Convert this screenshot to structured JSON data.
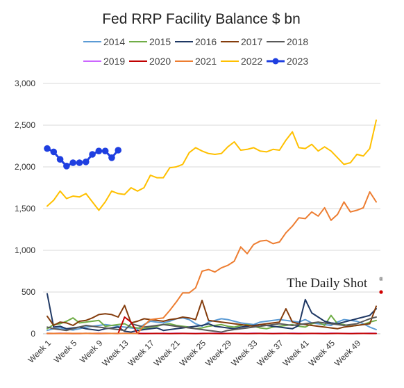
{
  "chart_data": {
    "type": "line",
    "title": "Fed RRP Facility Balance $ bn",
    "xlabel": "",
    "ylabel": "",
    "ylim": [
      0,
      3000
    ],
    "y_ticks": [
      "0",
      "500",
      "1,000",
      "1,500",
      "2,000",
      "2,500",
      "3,000"
    ],
    "x_tick_labels": [
      "Week 1",
      "Week 5",
      "Week 9",
      "Week 13",
      "Week 17",
      "Week 21",
      "Week 25",
      "Week 29",
      "Week 33",
      "Week 37",
      "Week 41",
      "Week 45",
      "Week 49"
    ],
    "x_tick_weeks": [
      1,
      5,
      9,
      13,
      17,
      21,
      25,
      29,
      33,
      37,
      41,
      45,
      49
    ],
    "weeks": 52,
    "grid": "horizontal",
    "legend_position": "top",
    "series": [
      {
        "name": "2014",
        "color": "#5b9bd5",
        "markers": false,
        "values": [
          40,
          60,
          70,
          55,
          45,
          60,
          80,
          90,
          100,
          110,
          100,
          90,
          80,
          70,
          60,
          110,
          150,
          140,
          130,
          150,
          180,
          190,
          170,
          120,
          90,
          140,
          160,
          180,
          170,
          150,
          130,
          120,
          110,
          140,
          150,
          160,
          170,
          160,
          150,
          140,
          170,
          130,
          120,
          110,
          100,
          140,
          170,
          160,
          150,
          120,
          80,
          50
        ]
      },
      {
        "name": "2015",
        "color": "#70ad47",
        "markers": false,
        "values": [
          60,
          110,
          120,
          150,
          190,
          130,
          140,
          150,
          160,
          90,
          100,
          110,
          120,
          80,
          70,
          60,
          80,
          90,
          110,
          120,
          100,
          90,
          80,
          60,
          70,
          90,
          100,
          110,
          90,
          80,
          100,
          110,
          90,
          70,
          60,
          80,
          90,
          100,
          110,
          90,
          80,
          120,
          140,
          100,
          220,
          120,
          110,
          90,
          100,
          110,
          140,
          160
        ]
      },
      {
        "name": "2016",
        "color": "#1f3864",
        "markers": false,
        "values": [
          480,
          80,
          90,
          60,
          70,
          80,
          60,
          50,
          40,
          60,
          70,
          80,
          30,
          20,
          40,
          50,
          60,
          70,
          40,
          50,
          60,
          70,
          80,
          90,
          100,
          120,
          90,
          80,
          70,
          60,
          80,
          90,
          100,
          110,
          100,
          90,
          80,
          70,
          60,
          100,
          410,
          250,
          200,
          150,
          130,
          120,
          140,
          160,
          180,
          200,
          220,
          300
        ]
      },
      {
        "name": "2017",
        "color": "#843c0c",
        "markers": false,
        "values": [
          210,
          100,
          140,
          130,
          100,
          150,
          160,
          190,
          230,
          240,
          230,
          200,
          340,
          130,
          150,
          180,
          170,
          160,
          150,
          170,
          180,
          200,
          190,
          170,
          400,
          160,
          150,
          140,
          130,
          120,
          110,
          100,
          90,
          110,
          120,
          130,
          140,
          300,
          140,
          120,
          110,
          100,
          90,
          80,
          70,
          60,
          80,
          90,
          100,
          110,
          120,
          330
        ]
      },
      {
        "name": "2018",
        "color": "#595959",
        "markers": false,
        "values": [
          80,
          60,
          50,
          40,
          60,
          80,
          100,
          90,
          80,
          70,
          60,
          50,
          40,
          120,
          100,
          80,
          90,
          100,
          110,
          100,
          90,
          80,
          70,
          60,
          50,
          40,
          30,
          20,
          40,
          50,
          60,
          70,
          80,
          90,
          100,
          110,
          120,
          110,
          100,
          110,
          120,
          130,
          140,
          130,
          120,
          110,
          100,
          110,
          120,
          150,
          180,
          200
        ]
      },
      {
        "name": "2019",
        "color": "#cc66ff",
        "markers": false,
        "values": [
          5,
          4,
          6,
          5,
          4,
          3,
          5,
          4,
          6,
          5,
          4,
          3,
          5,
          4,
          6,
          5,
          4,
          3,
          5,
          4,
          6,
          5,
          4,
          3,
          5,
          4,
          6,
          5,
          4,
          3,
          5,
          4,
          6,
          5,
          4,
          3,
          5,
          4,
          6,
          5,
          4,
          3,
          5,
          4,
          6,
          5,
          4,
          3,
          5,
          4,
          6,
          5
        ]
      },
      {
        "name": "2020",
        "color": "#c00000",
        "markers": false,
        "values": [
          3,
          3,
          4,
          3,
          2,
          3,
          4,
          3,
          2,
          3,
          4,
          3,
          200,
          140,
          3,
          2,
          3,
          4,
          3,
          2,
          3,
          4,
          3,
          2,
          3,
          4,
          3,
          2,
          3,
          4,
          3,
          2,
          3,
          4,
          3,
          2,
          3,
          4,
          3,
          2,
          3,
          4,
          3,
          2,
          3,
          4,
          3,
          2,
          3,
          4,
          3,
          3
        ]
      },
      {
        "name": "2021",
        "color": "#ed7d31",
        "markers": false,
        "values": [
          5,
          4,
          3,
          5,
          4,
          3,
          5,
          4,
          3,
          5,
          4,
          3,
          5,
          4,
          3,
          100,
          170,
          180,
          190,
          280,
          380,
          490,
          490,
          550,
          750,
          770,
          740,
          790,
          820,
          870,
          1040,
          960,
          1070,
          1110,
          1120,
          1080,
          1100,
          1210,
          1290,
          1390,
          1380,
          1460,
          1410,
          1510,
          1360,
          1430,
          1580,
          1460,
          1480,
          1510,
          1700,
          1580
        ]
      },
      {
        "name": "2022",
        "color": "#ffc000",
        "markers": false,
        "values": [
          1530,
          1600,
          1710,
          1620,
          1650,
          1640,
          1680,
          1580,
          1480,
          1580,
          1710,
          1680,
          1670,
          1750,
          1710,
          1750,
          1900,
          1870,
          1870,
          1990,
          2000,
          2030,
          2170,
          2230,
          2190,
          2160,
          2150,
          2160,
          2240,
          2300,
          2200,
          2210,
          2230,
          2190,
          2180,
          2210,
          2200,
          2320,
          2420,
          2230,
          2220,
          2270,
          2190,
          2240,
          2190,
          2110,
          2030,
          2050,
          2150,
          2130,
          2220,
          2560
        ]
      },
      {
        "name": "2023",
        "color": "#1f3fe0",
        "markers": true,
        "values": [
          2220,
          2180,
          2090,
          2010,
          2050,
          2050,
          2060,
          2150,
          2190,
          2190,
          2110,
          2200
        ]
      }
    ]
  },
  "brand": {
    "name": "The Daily Shot",
    "mark": "®"
  }
}
